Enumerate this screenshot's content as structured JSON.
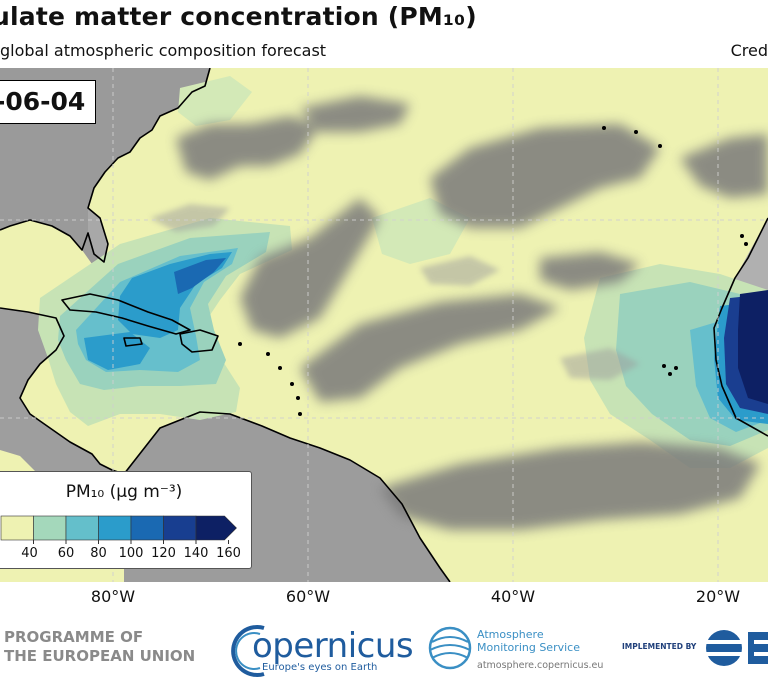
{
  "header": {
    "title": "ulate matter concentration (PM₁₀)",
    "subtitle": "global atmospheric composition forecast",
    "credit": "Cred"
  },
  "map": {
    "date_label": "-06-04",
    "longitude_labels": [
      "80°W",
      "60°W",
      "40°W",
      "20°W"
    ]
  },
  "legend": {
    "title": "PM₁₀ (μg m⁻³)",
    "ticks": [
      "40",
      "60",
      "80",
      "100",
      "120",
      "140",
      "160"
    ],
    "colors": [
      "#eef2b2",
      "#a4d8bb",
      "#64bfcb",
      "#2b9ccb",
      "#1a69b2",
      "#183e90",
      "#0d2064"
    ]
  },
  "footer": {
    "eu_line1": "PROGRAMME OF",
    "eu_line2": "THE EUROPEAN UNION",
    "copernicus_word": "opernicus",
    "copernicus_tagline": "Europe's eyes on Earth",
    "atmosphere_line1": "Atmosphere",
    "atmosphere_line2": "Monitoring Service",
    "atmosphere_url": "atmosphere.copernicus.eu",
    "implemented_by": "IMPLEMENTED BY"
  }
}
